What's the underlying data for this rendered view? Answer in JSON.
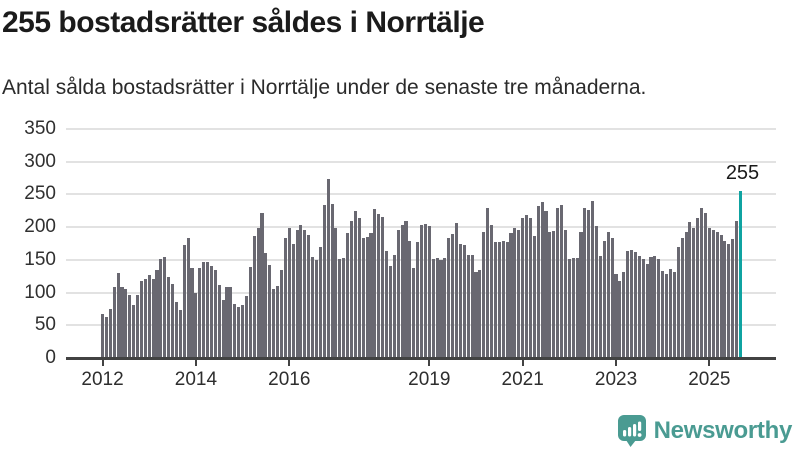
{
  "header": {
    "title": "255 bostadsrätter såldes i Norrtälje",
    "subtitle": "Antal sålda bostadsrätter i Norrtälje under de senaste tre månaderna."
  },
  "chart_data": {
    "type": "bar",
    "description": "Monthly bars from January 2012 to the latest period, values estimated from gridlines",
    "ylim": [
      0,
      350
    ],
    "y_ticks": [
      0,
      50,
      100,
      150,
      200,
      250,
      300,
      350
    ],
    "x_ticks": [
      {
        "label": "2012",
        "month_index": 0
      },
      {
        "label": "2014",
        "month_index": 24
      },
      {
        "label": "2016",
        "month_index": 48
      },
      {
        "label": "2019",
        "month_index": 84
      },
      {
        "label": "2021",
        "month_index": 108
      },
      {
        "label": "2023",
        "month_index": 132
      },
      {
        "label": "2025",
        "month_index": 156
      }
    ],
    "values": [
      67,
      62,
      75,
      108,
      130,
      109,
      106,
      96,
      81,
      97,
      118,
      121,
      127,
      120,
      135,
      151,
      155,
      124,
      113,
      85,
      74,
      173,
      183,
      137,
      99,
      137,
      146,
      147,
      141,
      135,
      112,
      89,
      108,
      109,
      82,
      78,
      81,
      95,
      139,
      186,
      198,
      221,
      161,
      142,
      106,
      110,
      135,
      183,
      198,
      175,
      196,
      203,
      196,
      188,
      155,
      150,
      169,
      234,
      273,
      235,
      199,
      152,
      153,
      191,
      209,
      225,
      214,
      183,
      185,
      191,
      227,
      220,
      216,
      163,
      141,
      157,
      196,
      203,
      209,
      179,
      137,
      178,
      203,
      205,
      201,
      152,
      153,
      150,
      153,
      183,
      189,
      206,
      174,
      173,
      158,
      157,
      132,
      135,
      193,
      229,
      203,
      178,
      178,
      179,
      178,
      191,
      198,
      196,
      214,
      219,
      214,
      186,
      233,
      238,
      224,
      193,
      194,
      230,
      234,
      196,
      152,
      153,
      153,
      192,
      229,
      226,
      240,
      201,
      156,
      179,
      193,
      184,
      128,
      117,
      132,
      163,
      165,
      162,
      156,
      151,
      143,
      155,
      156,
      151,
      133,
      128,
      136,
      132,
      169,
      183,
      192,
      208,
      198,
      214,
      230,
      221,
      199,
      196,
      193,
      188,
      179,
      175,
      182,
      209,
      255
    ],
    "highlight": {
      "index_from_end": 1,
      "value": 255,
      "annotation_text": "255"
    },
    "grid": true,
    "colors": {
      "bar": "#696871",
      "highlight_bar": "#0fa3a1",
      "gridline": "#e2e2e2",
      "axis": "#424242",
      "label": "#2e2e2e"
    }
  },
  "footer": {
    "brand": "Newsworthy",
    "brand_color": "#4a9b92",
    "logo_icon": "bar-chart-speech-bubble"
  }
}
